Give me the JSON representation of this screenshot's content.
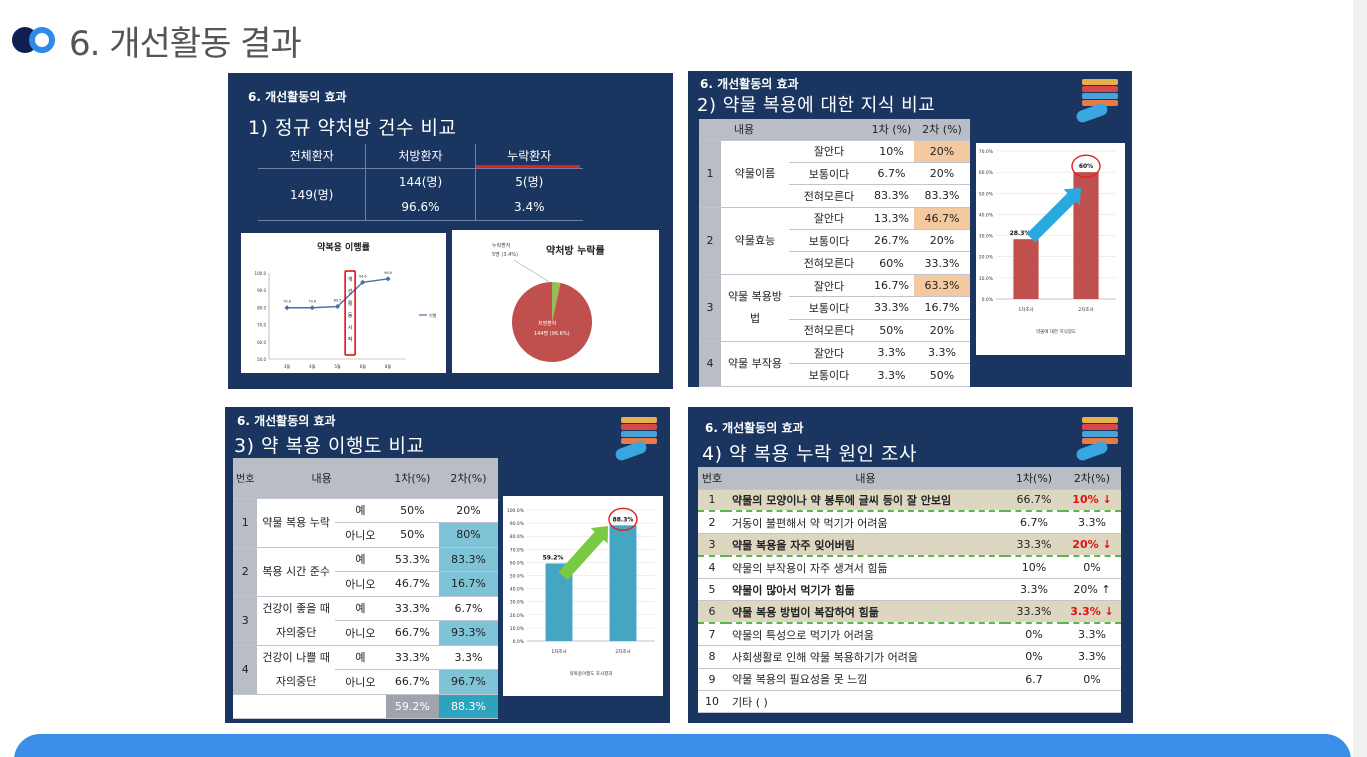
{
  "header": {
    "title": "6. 개선활동 결과"
  },
  "panel1": {
    "tag": "6. 개선활동의 효과",
    "title": "1) 정규 약처방 건수 비교",
    "headers": [
      "전체환자",
      "처방환자",
      "누락환자"
    ],
    "total": "149(명)",
    "prescribed_count": "144(명)",
    "prescribed_pct": "96.6%",
    "missed_count": "5(명)",
    "missed_pct": "3.4%",
    "line_chart": {
      "title": "약복용 이행률",
      "y_ticks": [
        "100.0",
        "90.0",
        "80.0",
        "70.0",
        "60.0",
        "50.0"
      ],
      "x_ticks": [
        "3월",
        "4월",
        "5월",
        "6월",
        "8월"
      ],
      "point_labels": [
        "79.8",
        "79.8",
        "80.5",
        "94.6",
        "96.6"
      ],
      "legend": "이행",
      "vertical_note": "개선활동시작",
      "values": [
        79.8,
        79.8,
        80.5,
        94.6,
        96.6
      ]
    },
    "pie_chart": {
      "title": "약처방 누락률",
      "missed_label": "누락환자",
      "missed_value": "5명 (3.4%)",
      "prescribed_label": "처방환자",
      "prescribed_value": "144명 (96.6%)",
      "values": [
        96.6,
        3.4
      ],
      "colors": [
        "#c0504d",
        "#9bbb59"
      ]
    }
  },
  "panel2": {
    "tag": "6. 개선활동의 효과",
    "title": "2) 약물 복용에 대한 지식 비교",
    "headers": [
      "내용",
      "1차 (%)",
      "2차 (%)"
    ],
    "groups": [
      {
        "num": "1",
        "name": "약물이름",
        "rows": [
          [
            "잘안다",
            "10%",
            "20%"
          ],
          [
            "보통이다",
            "6.7%",
            "20%"
          ],
          [
            "전혀모른다",
            "83.3%",
            "83.3%"
          ]
        ]
      },
      {
        "num": "2",
        "name": "약물효능",
        "rows": [
          [
            "잘안다",
            "13.3%",
            "46.7%"
          ],
          [
            "보통이다",
            "26.7%",
            "20%"
          ],
          [
            "전혀모른다",
            "60%",
            "33.3%"
          ]
        ]
      },
      {
        "num": "3",
        "name": "약물 복용방법",
        "rows": [
          [
            "잘안다",
            "16.7%",
            "63.3%"
          ],
          [
            "보통이다",
            "33.3%",
            "16.7%"
          ],
          [
            "전혀모른다",
            "50%",
            "20%"
          ]
        ]
      },
      {
        "num": "4",
        "name": "약물 부작용",
        "rows": [
          [
            "잘안다",
            "3.3%",
            "3.3%"
          ],
          [
            "보통이다",
            "3.3%",
            "50%"
          ]
        ]
      }
    ],
    "bar_chart": {
      "y_ticks": [
        "70.0%",
        "60.0%",
        "50.0%",
        "40.0%",
        "30.0%",
        "20.0%",
        "10.0%",
        "0.0%"
      ],
      "categories": [
        "1차조사",
        "2차조사"
      ],
      "values": [
        28.3,
        60
      ],
      "labels": [
        "28.3%",
        "60%"
      ],
      "xlabel": "약물에 대한 지식정도"
    }
  },
  "panel3": {
    "tag": "6. 개선활동의 효과",
    "title": "3) 약 복용 이행도 비교",
    "headers": [
      "번호",
      "내용",
      "1차(%)",
      "2차(%)"
    ],
    "groups": [
      {
        "num": "1",
        "name": "약물 복용 누락",
        "rows": [
          [
            "예",
            "50%",
            "20%"
          ],
          [
            "아니오",
            "50%",
            "80%"
          ]
        ]
      },
      {
        "num": "2",
        "name": "복용 시간 준수",
        "rows": [
          [
            "예",
            "53.3%",
            "83.3%"
          ],
          [
            "아니오",
            "46.7%",
            "16.7%"
          ]
        ]
      },
      {
        "num": "3",
        "name": "건강이 좋을 때 자의중단",
        "rows": [
          [
            "예",
            "33.3%",
            "6.7%"
          ],
          [
            "아니오",
            "66.7%",
            "93.3%"
          ]
        ]
      },
      {
        "num": "4",
        "name": "건강이 나쁠 때 자의중단",
        "rows": [
          [
            "예",
            "33.3%",
            "3.3%"
          ],
          [
            "아니오",
            "66.7%",
            "96.7%"
          ]
        ]
      }
    ],
    "totals": [
      "59.2%",
      "88.3%"
    ],
    "bar_chart": {
      "y_ticks": [
        "100.0%",
        "90.0%",
        "80.0%",
        "70.0%",
        "60.0%",
        "50.0%",
        "40.0%",
        "30.0%",
        "20.0%",
        "10.0%",
        "0.0%"
      ],
      "categories": [
        "1차조사",
        "2차조사"
      ],
      "values": [
        59.2,
        88.3
      ],
      "labels": [
        "59.2%",
        "88.3%"
      ],
      "xlabel": "약복용이행도 조사결과"
    }
  },
  "panel4": {
    "tag": "6. 개선활동의 효과",
    "title": "4) 약 복용 누락 원인 조사",
    "headers": [
      "번호",
      "내용",
      "1차(%)",
      "2차(%)"
    ],
    "rows": [
      {
        "num": "1",
        "text": "약물의 모양이나 약 봉투에 글씨 등이 잘 안보임",
        "v1": "66.7%",
        "v2": "10% ↓"
      },
      {
        "num": "2",
        "text": "거동이 불편해서 약 먹기가 어려움",
        "v1": "6.7%",
        "v2": "3.3%"
      },
      {
        "num": "3",
        "text": "약물 복용을 자주 잊어버림",
        "v1": "33.3%",
        "v2": "20% ↓"
      },
      {
        "num": "4",
        "text": "약물의 부작용이 자주 생겨서 힘듦",
        "v1": "10%",
        "v2": "0%"
      },
      {
        "num": "5",
        "text": "약물이 많아서 먹기가 힘듦",
        "v1": "3.3%",
        "v2": "20% ↑"
      },
      {
        "num": "6",
        "text": "약물 복용 방법이 복잡하여 힘듦",
        "v1": "33.3%",
        "v2": "3.3% ↓"
      },
      {
        "num": "7",
        "text": "약물의 특성으로 먹기가 어려움",
        "v1": "0%",
        "v2": "3.3%"
      },
      {
        "num": "8",
        "text": "사회생활로 인해 약물 복용하기가 어려움",
        "v1": "0%",
        "v2": "3.3%"
      },
      {
        "num": "9",
        "text": "약물 복용의 필요성을 못 느낌",
        "v1": "6.7",
        "v2": "0%"
      },
      {
        "num": "10",
        "text": "기타 ( )",
        "v1": "",
        "v2": ""
      }
    ]
  }
}
